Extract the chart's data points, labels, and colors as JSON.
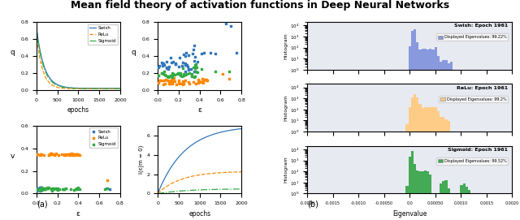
{
  "title": "Mean field theory of activation functions in Deep Neural Networks",
  "title_fontsize": 9,
  "colors": {
    "swish": "#3377bb",
    "relu": "#ff8800",
    "sigmoid": "#33aa44"
  },
  "hist_colors": {
    "swish": "#8899dd",
    "relu": "#ffcc88",
    "sigmoid": "#44aa55"
  },
  "hist_bg": "#e8eaf2",
  "ax_labels": {
    "epochs": "epochs",
    "epsilon": "ε",
    "q": "q",
    "v": "v",
    "I_em0": "I(ε|m = 0)",
    "eigenvalue": "Eigenvalue",
    "histogram": "Histogram"
  },
  "subplot_labels": {
    "a": "(a)",
    "b": "(b)"
  },
  "legend_titles": {
    "swish": "Swish",
    "relu": "ReLu",
    "sigmoid": "Sigmoid"
  },
  "hist_annotations": {
    "swish": {
      "title": "Swish: Epoch 1961",
      "sub": "Displayed Eigenvalues: 99.22%"
    },
    "relu": {
      "title": "ReLu: Epoch 1961",
      "sub": "Displayed Eigenvalues: 99.2%"
    },
    "sigmoid": {
      "title": "Sigmoid: Epoch 1961",
      "sub": "Displayed Eigenvalues: 99.52%"
    }
  },
  "xlim_epochs": [
    0,
    2000
  ],
  "xlim_eps": [
    0.0,
    0.8
  ],
  "ylim_q_epochs": [
    0.0,
    0.8
  ],
  "ylim_q_eps": [
    0.0,
    0.8
  ],
  "ylim_v_eps": [
    0.0,
    0.6
  ],
  "ylim_I_epochs": [
    0.0,
    7
  ],
  "hist_xlim": [
    -0.002,
    0.002
  ],
  "hist_xticks": [
    -0.002,
    -0.0015,
    -0.001,
    -0.0005,
    0.0,
    0.0005,
    0.001,
    0.0015,
    0.002
  ],
  "hist_xticklabels": [
    "-0.0020",
    "-0.0015",
    "-0.0010",
    "-0.00050",
    "0.0",
    "0.00050",
    "0.0010",
    "0.0015",
    "0.0020"
  ]
}
